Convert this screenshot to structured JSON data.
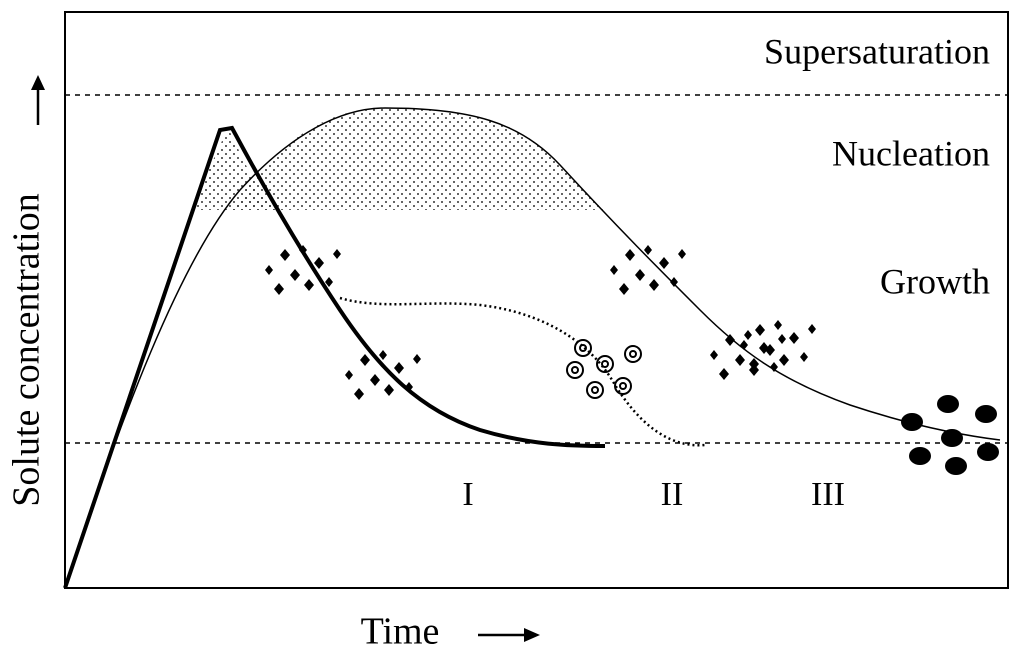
{
  "y_axis_label": "Solute concentration",
  "x_axis_label": "Time",
  "regions": [
    "Supersaturation",
    "Nucleation",
    "Growth"
  ],
  "stages": [
    "I",
    "II",
    "III"
  ]
}
